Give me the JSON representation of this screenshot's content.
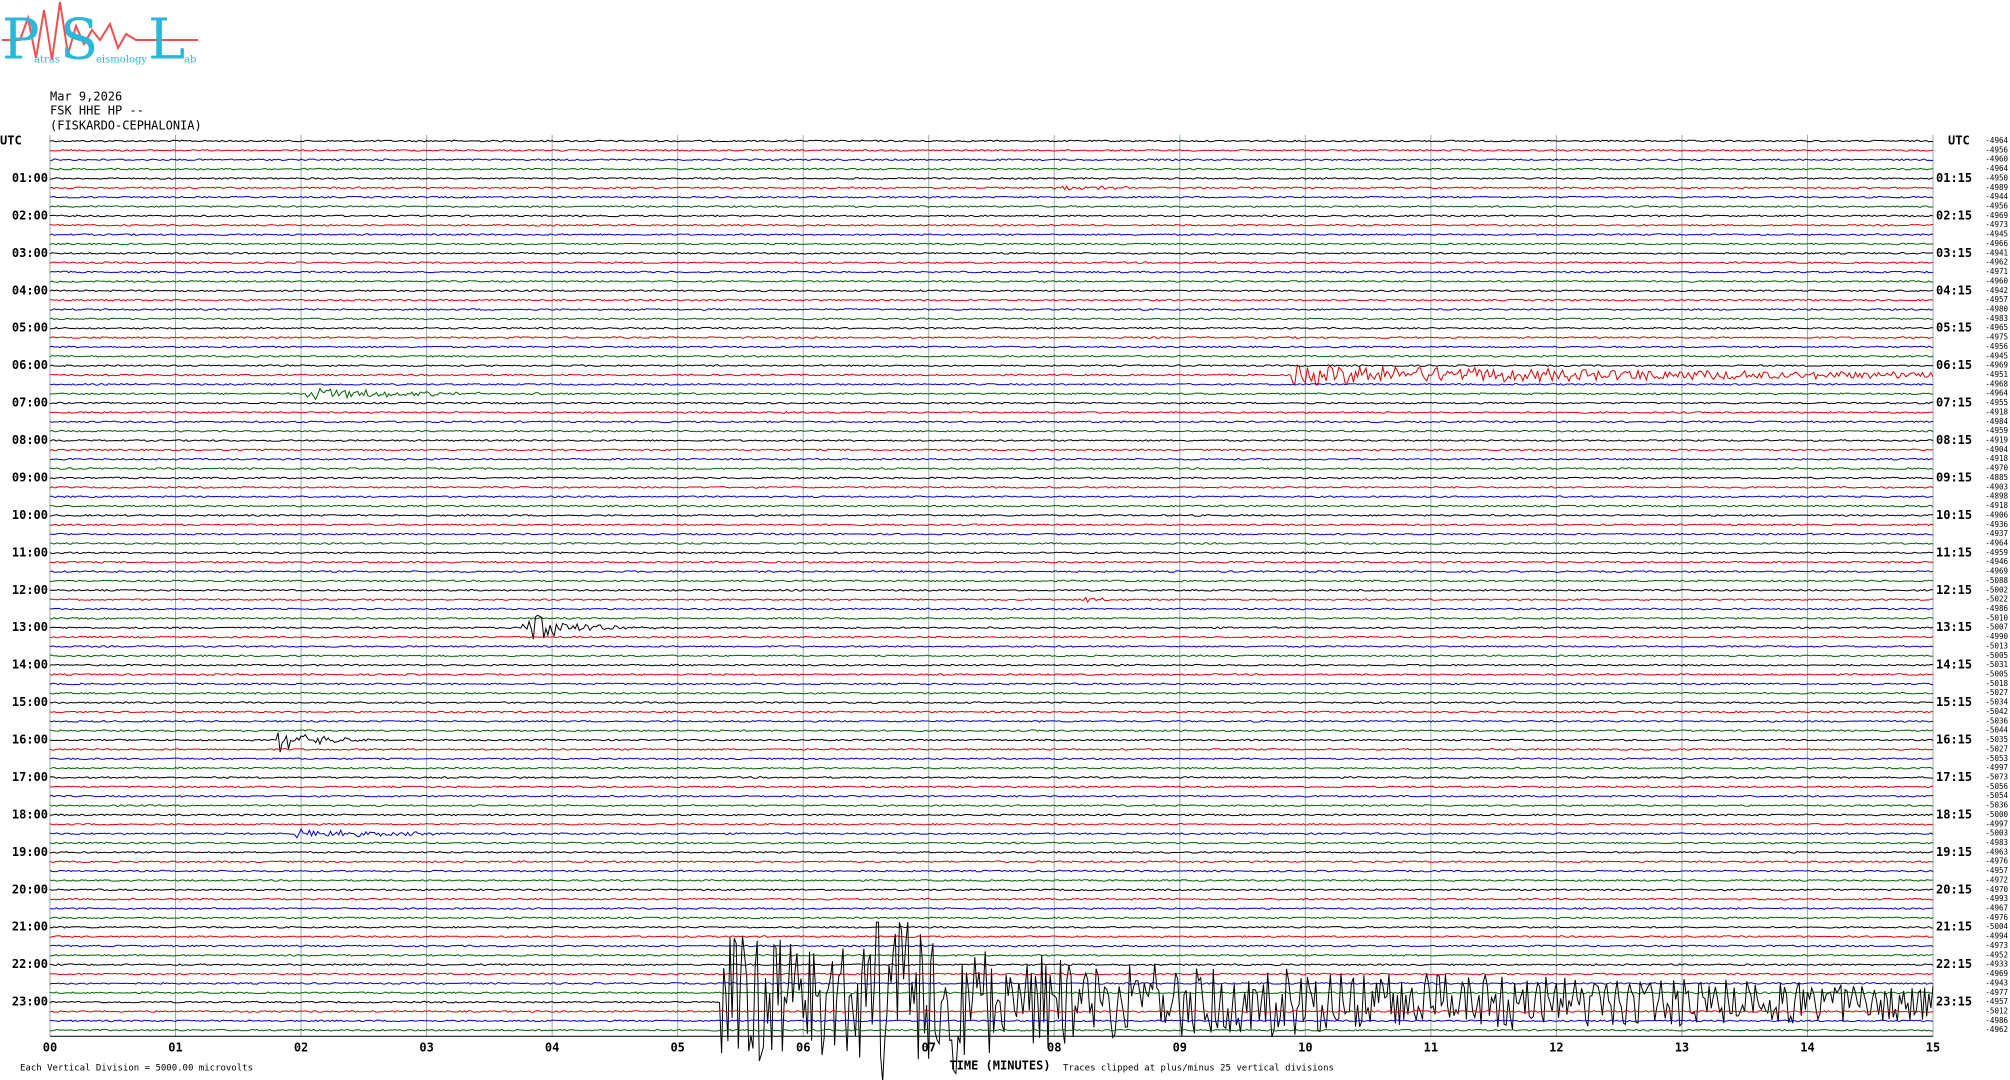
{
  "logo": {
    "letters": [
      "P",
      "S",
      "L"
    ],
    "words": [
      "atras",
      "eismology",
      "ab"
    ]
  },
  "header": {
    "date": "Mar 9,2026",
    "station": "FSK HHE HP --",
    "location": "(FISKARDO-CEPHALONIA)"
  },
  "left_axis": {
    "title": "UTC",
    "labels": [
      "01:00",
      "02:00",
      "03:00",
      "04:00",
      "05:00",
      "06:00",
      "07:00",
      "08:00",
      "09:00",
      "10:00",
      "11:00",
      "12:00",
      "13:00",
      "14:00",
      "15:00",
      "16:00",
      "17:00",
      "18:00",
      "19:00",
      "20:00",
      "21:00",
      "22:00",
      "23:00"
    ]
  },
  "right_axis": {
    "title": "UTC",
    "labels": [
      "01:15",
      "02:15",
      "03:15",
      "04:15",
      "05:15",
      "06:15",
      "07:15",
      "08:15",
      "09:15",
      "10:15",
      "11:15",
      "12:15",
      "13:15",
      "14:15",
      "15:15",
      "16:15",
      "17:15",
      "18:15",
      "19:15",
      "20:15",
      "21:15",
      "22:15",
      "23:15"
    ]
  },
  "trace_offsets": [
    -4964,
    -4956,
    -4960,
    -4964,
    -4950,
    -4989,
    -4944,
    -4956,
    -4969,
    -4973,
    -4945,
    -4966,
    -4941,
    -4962,
    -4971,
    -4960,
    -4942,
    -4957,
    -4980,
    -4983,
    -4965,
    -4975,
    -4956,
    -4945,
    -4969,
    -4951,
    -4968,
    -4964,
    -4955,
    -4918,
    -4984,
    -4959,
    -4919,
    -4904,
    -4918,
    -4970,
    -4885,
    -4903,
    -4898,
    -4918,
    -4906,
    -4936,
    -4937,
    -4964,
    -4959,
    -4946,
    -4969,
    -5088,
    -5002,
    -5022,
    -4986,
    -5010,
    -5007,
    -4990,
    -5013,
    -5005,
    -5031,
    -5005,
    -5018,
    -5027,
    -5034,
    -5042,
    -5036,
    -5044,
    -5035,
    -5027,
    -5053,
    -4997,
    -5073,
    -5056,
    -5054,
    -5036,
    -5000,
    -4997,
    -5003,
    -4983,
    -4963,
    -4976,
    -4957,
    -4972,
    -4970,
    -4993,
    -4967,
    -4976,
    -5004,
    -4994,
    -4973,
    -4952,
    -4933,
    -4969,
    -4943,
    -4977,
    -4957,
    -5012,
    -4986,
    -4962
  ],
  "time_axis": {
    "labels": [
      "00",
      "01",
      "02",
      "03",
      "04",
      "05",
      "06",
      "07",
      "08",
      "09",
      "10",
      "11",
      "12",
      "13",
      "14",
      "15"
    ],
    "title": "TIME (MINUTES)"
  },
  "footer": {
    "scale": "Each Vertical Division = 5000.00 microvolts",
    "clip": "Traces clipped at plus/minus 25 vertical divisions"
  }
}
